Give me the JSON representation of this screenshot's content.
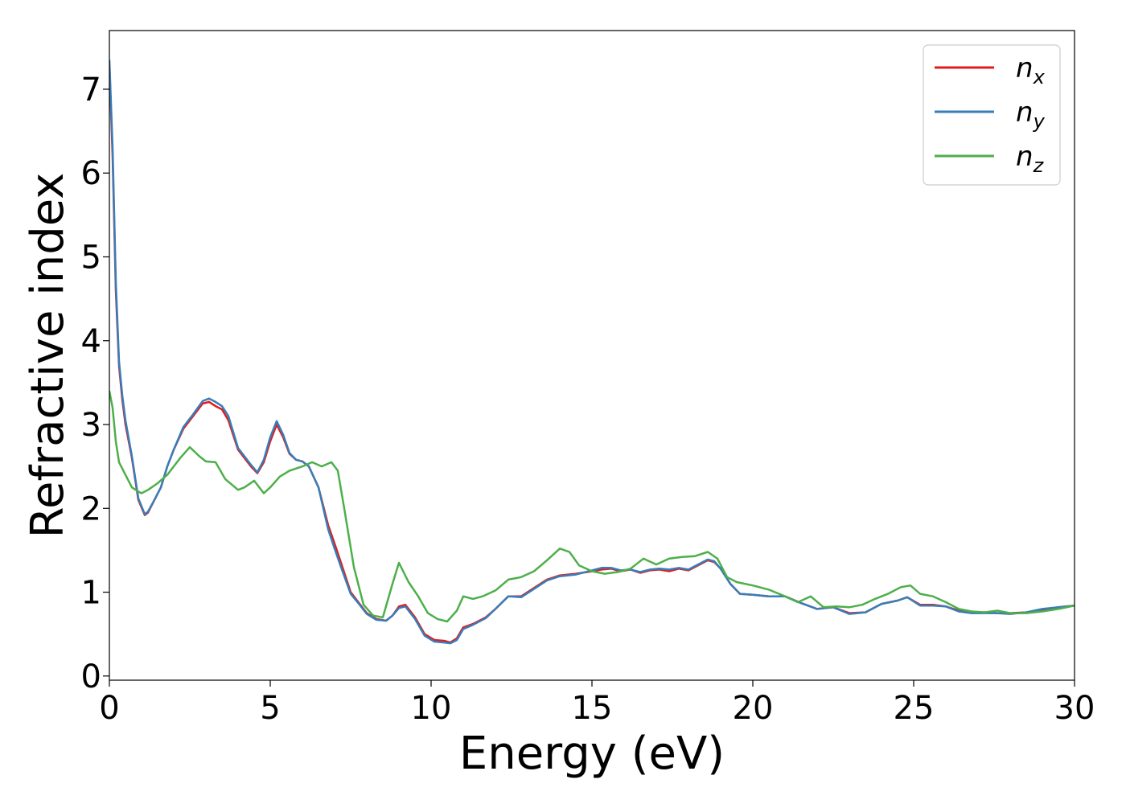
{
  "chart_data": {
    "type": "line",
    "xlabel": "Energy (eV)",
    "ylabel": "Refractive index",
    "xlim": [
      0,
      30
    ],
    "ylim": [
      -0.05,
      7.7
    ],
    "xticks": [
      0,
      5,
      10,
      15,
      20,
      25,
      30
    ],
    "yticks": [
      0,
      1,
      2,
      3,
      4,
      5,
      6,
      7
    ],
    "grid": false,
    "legend_position": "top-right",
    "series": [
      {
        "name": "n",
        "subscript": "x",
        "color": "#e41a1c",
        "x": [
          0,
          0.1,
          0.2,
          0.3,
          0.4,
          0.5,
          0.7,
          0.9,
          1.1,
          1.2,
          1.4,
          1.6,
          1.8,
          2.0,
          2.3,
          2.6,
          2.9,
          3.1,
          3.3,
          3.5,
          3.7,
          4.0,
          4.2,
          4.4,
          4.6,
          4.8,
          5.0,
          5.2,
          5.4,
          5.6,
          5.8,
          6.0,
          6.2,
          6.5,
          6.8,
          7.0,
          7.2,
          7.5,
          7.8,
          8.0,
          8.3,
          8.6,
          8.8,
          9.0,
          9.2,
          9.5,
          9.8,
          10.1,
          10.4,
          10.6,
          10.8,
          11.0,
          11.3,
          11.7,
          12.0,
          12.4,
          12.8,
          13.2,
          13.6,
          14.0,
          14.5,
          15.0,
          15.3,
          15.6,
          15.9,
          16.2,
          16.5,
          16.8,
          17.1,
          17.4,
          17.7,
          18.0,
          18.3,
          18.6,
          18.8,
          19.0,
          19.3,
          19.6,
          20.0,
          20.5,
          21.0,
          21.5,
          22.0,
          22.5,
          23.0,
          23.5,
          24.0,
          24.5,
          24.8,
          25.2,
          25.6,
          26.0,
          26.4,
          26.8,
          27.2,
          27.6,
          28.0,
          28.5,
          29.0,
          29.5,
          30.0
        ],
        "y": [
          7.3,
          6.2,
          4.6,
          3.7,
          3.3,
          3.0,
          2.6,
          2.1,
          1.92,
          1.95,
          2.1,
          2.25,
          2.5,
          2.7,
          2.95,
          3.1,
          3.25,
          3.27,
          3.22,
          3.18,
          3.05,
          2.7,
          2.6,
          2.5,
          2.42,
          2.55,
          2.8,
          3.0,
          2.85,
          2.65,
          2.58,
          2.56,
          2.5,
          2.25,
          1.8,
          1.58,
          1.35,
          1.0,
          0.85,
          0.75,
          0.68,
          0.66,
          0.72,
          0.83,
          0.85,
          0.7,
          0.5,
          0.43,
          0.42,
          0.4,
          0.45,
          0.58,
          0.62,
          0.7,
          0.8,
          0.95,
          0.95,
          1.05,
          1.15,
          1.2,
          1.22,
          1.25,
          1.27,
          1.28,
          1.25,
          1.27,
          1.23,
          1.26,
          1.27,
          1.25,
          1.28,
          1.26,
          1.32,
          1.38,
          1.36,
          1.28,
          1.1,
          0.98,
          0.97,
          0.95,
          0.95,
          0.87,
          0.8,
          0.82,
          0.75,
          0.76,
          0.86,
          0.9,
          0.94,
          0.85,
          0.85,
          0.83,
          0.78,
          0.76,
          0.76,
          0.75,
          0.75,
          0.76,
          0.79,
          0.82,
          0.84
        ]
      },
      {
        "name": "n",
        "subscript": "y",
        "color": "#377eb8",
        "x": [
          0,
          0.1,
          0.2,
          0.3,
          0.4,
          0.5,
          0.7,
          0.9,
          1.1,
          1.2,
          1.4,
          1.6,
          1.8,
          2.0,
          2.3,
          2.6,
          2.9,
          3.1,
          3.3,
          3.5,
          3.7,
          4.0,
          4.2,
          4.4,
          4.6,
          4.8,
          5.0,
          5.2,
          5.4,
          5.6,
          5.8,
          6.0,
          6.2,
          6.5,
          6.8,
          7.0,
          7.2,
          7.5,
          7.8,
          8.0,
          8.3,
          8.6,
          8.8,
          9.0,
          9.2,
          9.5,
          9.8,
          10.1,
          10.4,
          10.6,
          10.8,
          11.0,
          11.3,
          11.7,
          12.0,
          12.4,
          12.8,
          13.2,
          13.6,
          14.0,
          14.5,
          15.0,
          15.3,
          15.6,
          15.9,
          16.2,
          16.5,
          16.8,
          17.1,
          17.4,
          17.7,
          18.0,
          18.3,
          18.6,
          18.8,
          19.0,
          19.3,
          19.6,
          20.0,
          20.5,
          21.0,
          21.5,
          22.0,
          22.5,
          23.0,
          23.5,
          24.0,
          24.5,
          24.8,
          25.2,
          25.6,
          26.0,
          26.4,
          26.8,
          27.2,
          27.6,
          28.0,
          28.5,
          29.0,
          29.5,
          30.0
        ],
        "y": [
          7.35,
          6.3,
          4.7,
          3.75,
          3.35,
          3.05,
          2.62,
          2.12,
          1.93,
          1.96,
          2.1,
          2.25,
          2.5,
          2.7,
          2.97,
          3.12,
          3.28,
          3.31,
          3.27,
          3.22,
          3.1,
          2.72,
          2.62,
          2.52,
          2.43,
          2.58,
          2.85,
          3.04,
          2.88,
          2.66,
          2.58,
          2.56,
          2.5,
          2.25,
          1.75,
          1.52,
          1.3,
          0.98,
          0.84,
          0.74,
          0.67,
          0.66,
          0.72,
          0.81,
          0.83,
          0.68,
          0.48,
          0.41,
          0.4,
          0.39,
          0.43,
          0.56,
          0.61,
          0.69,
          0.8,
          0.95,
          0.94,
          1.04,
          1.14,
          1.19,
          1.21,
          1.26,
          1.29,
          1.29,
          1.26,
          1.27,
          1.24,
          1.27,
          1.28,
          1.27,
          1.29,
          1.27,
          1.33,
          1.39,
          1.37,
          1.28,
          1.1,
          0.98,
          0.97,
          0.95,
          0.95,
          0.87,
          0.8,
          0.82,
          0.74,
          0.76,
          0.86,
          0.9,
          0.94,
          0.84,
          0.84,
          0.83,
          0.77,
          0.75,
          0.75,
          0.75,
          0.74,
          0.76,
          0.8,
          0.82,
          0.84
        ]
      },
      {
        "name": "n",
        "subscript": "z",
        "color": "#4daf4a",
        "x": [
          0,
          0.1,
          0.2,
          0.3,
          0.5,
          0.7,
          0.9,
          1.0,
          1.2,
          1.5,
          1.8,
          2.0,
          2.2,
          2.5,
          2.8,
          3.0,
          3.3,
          3.6,
          4.0,
          4.2,
          4.5,
          4.8,
          5.0,
          5.3,
          5.6,
          6.0,
          6.3,
          6.6,
          6.9,
          7.1,
          7.3,
          7.6,
          7.9,
          8.2,
          8.5,
          8.8,
          9.0,
          9.3,
          9.6,
          9.9,
          10.2,
          10.5,
          10.8,
          11.0,
          11.3,
          11.6,
          12.0,
          12.4,
          12.8,
          13.2,
          13.6,
          14.0,
          14.3,
          14.6,
          15.0,
          15.4,
          15.8,
          16.2,
          16.6,
          17.0,
          17.4,
          17.8,
          18.2,
          18.6,
          18.9,
          19.2,
          19.5,
          20.0,
          20.5,
          21.0,
          21.4,
          21.8,
          22.2,
          22.6,
          23.0,
          23.4,
          23.8,
          24.2,
          24.6,
          24.9,
          25.2,
          25.6,
          26.0,
          26.4,
          26.8,
          27.2,
          27.6,
          28.0,
          28.5,
          29.0,
          29.5,
          30.0
        ],
        "y": [
          3.4,
          3.2,
          2.8,
          2.55,
          2.4,
          2.25,
          2.2,
          2.18,
          2.22,
          2.3,
          2.4,
          2.5,
          2.6,
          2.73,
          2.62,
          2.56,
          2.55,
          2.35,
          2.22,
          2.25,
          2.33,
          2.18,
          2.25,
          2.38,
          2.45,
          2.5,
          2.55,
          2.5,
          2.55,
          2.45,
          2.0,
          1.3,
          0.85,
          0.72,
          0.7,
          1.1,
          1.35,
          1.12,
          0.95,
          0.75,
          0.68,
          0.65,
          0.78,
          0.95,
          0.92,
          0.95,
          1.02,
          1.15,
          1.18,
          1.25,
          1.38,
          1.52,
          1.48,
          1.32,
          1.25,
          1.22,
          1.24,
          1.28,
          1.4,
          1.33,
          1.4,
          1.42,
          1.43,
          1.48,
          1.4,
          1.18,
          1.12,
          1.08,
          1.03,
          0.95,
          0.88,
          0.95,
          0.82,
          0.83,
          0.82,
          0.85,
          0.92,
          0.98,
          1.06,
          1.08,
          0.98,
          0.95,
          0.88,
          0.8,
          0.77,
          0.76,
          0.78,
          0.75,
          0.75,
          0.77,
          0.8,
          0.84
        ]
      }
    ]
  }
}
